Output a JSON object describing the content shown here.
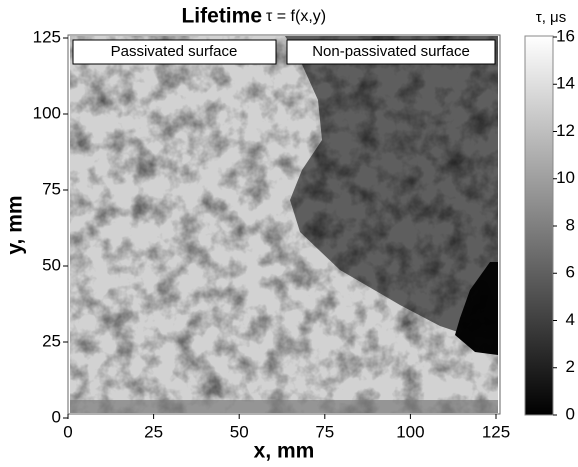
{
  "chart_data": {
    "type": "heatmap",
    "title": "Lifetime",
    "title_formula": "τ = f(x,y)",
    "xlabel": "x, mm",
    "ylabel": "y, mm",
    "xlim": [
      0,
      125
    ],
    "xticks": [
      0,
      25,
      50,
      75,
      100,
      125
    ],
    "ylim": [
      0,
      125
    ],
    "yticks": [
      0,
      25,
      50,
      75,
      100,
      125
    ],
    "annotations": [
      "Passivated surface",
      "Non-passivated surface"
    ],
    "colorbar": {
      "label": "τ, μs",
      "lim": [
        0,
        16
      ],
      "ticks": [
        0,
        2,
        4,
        6,
        8,
        10,
        12,
        14,
        16
      ]
    }
  }
}
